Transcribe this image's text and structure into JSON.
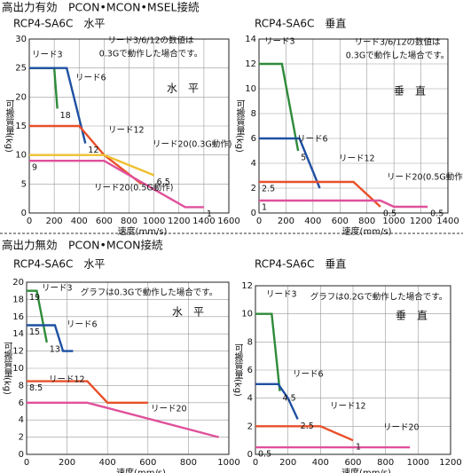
{
  "headers": [
    "高出力有効　PCON•MCON•MSEL接続",
    "高出力無効　PCON•MCON接続"
  ],
  "chart_data": [
    {
      "type": "line",
      "title": "RCP4-SA6C　水平",
      "x_label": "速度(mm/s)",
      "y_label": "可搬質量(kg)",
      "notes": [
        "リード3/6/12の数値は",
        "0.3Gで動作した場合です。"
      ],
      "direction": "水　平",
      "xlim": [
        0,
        1600
      ],
      "xticks": [
        0,
        200,
        400,
        600,
        800,
        1000,
        1200,
        1400,
        1600
      ],
      "ylim": [
        0,
        30
      ],
      "yticks": [
        0,
        5,
        10,
        15,
        20,
        25,
        30
      ],
      "grid": true,
      "series": [
        {
          "name": "リード3",
          "color": "#2e8b3a",
          "x": [
            0,
            200,
            225
          ],
          "values": [
            25,
            25,
            18
          ]
        },
        {
          "name": "リード6",
          "color": "#1e50a2",
          "x": [
            0,
            300,
            450
          ],
          "values": [
            25,
            25,
            12
          ]
        },
        {
          "name": "リード12",
          "color": "#e8502a",
          "x": [
            0,
            400,
            600,
            900
          ],
          "values": [
            15,
            15,
            10,
            5
          ]
        },
        {
          "name": "リード20(0.3G動作)",
          "color": "#f0c030",
          "x": [
            0,
            600,
            1000
          ],
          "values": [
            10,
            10,
            6.5
          ]
        },
        {
          "name": "リード20(0.5G動作)",
          "color": "#e0509a",
          "x": [
            0,
            600,
            1250,
            1400
          ],
          "values": [
            9,
            9,
            1,
            1
          ]
        }
      ],
      "point_labels": [
        {
          "value": 18,
          "x": 225
        },
        {
          "value": 12,
          "x": 450
        },
        {
          "value": 6.5,
          "x": 1000
        },
        {
          "value": 9,
          "x": 0
        },
        {
          "value": 1,
          "x": 1400
        }
      ]
    },
    {
      "type": "line",
      "title": "RCP4-SA6C　垂直",
      "x_label": "速度(mm/s)",
      "y_label": "可搬質量(kg)",
      "notes": [
        "リード3/6/12の数値は",
        "0.3Gで動作した場合です。"
      ],
      "direction": "垂　直",
      "xlim": [
        0,
        1400
      ],
      "xticks": [
        0,
        200,
        400,
        600,
        800,
        1000,
        1200,
        1400
      ],
      "ylim": [
        0,
        14
      ],
      "yticks": [
        0,
        2,
        4,
        6,
        8,
        10,
        12,
        14
      ],
      "grid": true,
      "series": [
        {
          "name": "リード3",
          "color": "#2e8b3a",
          "x": [
            0,
            170,
            290
          ],
          "values": [
            12,
            12,
            5
          ]
        },
        {
          "name": "リード6",
          "color": "#1e50a2",
          "x": [
            0,
            300,
            450
          ],
          "values": [
            6,
            6,
            2
          ]
        },
        {
          "name": "リード12",
          "color": "#e8502a",
          "x": [
            0,
            700,
            900
          ],
          "values": [
            2.5,
            2.5,
            0.5
          ]
        },
        {
          "name": "リード20(0.5G動作)",
          "color": "#e0509a",
          "x": [
            0,
            900,
            1000,
            1250
          ],
          "values": [
            1,
            1,
            0.5,
            0.5
          ]
        }
      ],
      "point_labels": [
        {
          "value": 5,
          "x": 290
        },
        {
          "value": 2.5,
          "x": 0
        },
        {
          "value": 1,
          "x": 0
        },
        {
          "value": 0.5,
          "x": 900
        },
        {
          "value": 0.5,
          "x": 1250
        }
      ]
    },
    {
      "type": "line",
      "title": "RCP4-SA6C　水平",
      "x_label": "速度(mm/s)",
      "y_label": "可搬質量(kg)",
      "notes": [
        "グラフは0.3Gで動作した場合です。"
      ],
      "direction": "水　平",
      "xlim": [
        0,
        1000
      ],
      "xticks": [
        0,
        200,
        400,
        600,
        800,
        1000
      ],
      "ylim": [
        0,
        20
      ],
      "yticks": [
        0,
        2,
        4,
        6,
        8,
        10,
        12,
        14,
        16,
        18,
        20
      ],
      "grid": true,
      "series": [
        {
          "name": "リード3",
          "color": "#2e8b3a",
          "x": [
            0,
            50,
            100
          ],
          "values": [
            19,
            19,
            13
          ]
        },
        {
          "name": "リード6",
          "color": "#1e50a2",
          "x": [
            0,
            140,
            180,
            230
          ],
          "values": [
            15,
            15,
            12,
            12
          ]
        },
        {
          "name": "リード12",
          "color": "#e8502a",
          "x": [
            0,
            300,
            400,
            600
          ],
          "values": [
            8.5,
            8.5,
            6,
            6
          ]
        },
        {
          "name": "リード20",
          "color": "#e0509a",
          "x": [
            0,
            300,
            950
          ],
          "values": [
            6,
            6,
            2
          ]
        }
      ],
      "point_labels": [
        {
          "value": 19,
          "x": 0
        },
        {
          "value": 15,
          "x": 0
        },
        {
          "value": 13,
          "x": 100
        },
        {
          "value": 8.5,
          "x": 0
        }
      ]
    },
    {
      "type": "line",
      "title": "RCP4-SA6C　垂直",
      "x_label": "速度(mm/s)",
      "y_label": "可搬質量(kg)",
      "notes": [
        "グラフは0.2Gで動作した場合です。"
      ],
      "direction": "垂　直",
      "xlim": [
        0,
        1200
      ],
      "xticks": [
        0,
        200,
        400,
        600,
        800,
        1000,
        1200
      ],
      "ylim": [
        0,
        12
      ],
      "yticks": [
        0,
        2,
        4,
        6,
        8,
        10,
        12
      ],
      "grid": true,
      "series": [
        {
          "name": "リード3",
          "color": "#2e8b3a",
          "x": [
            0,
            100,
            150
          ],
          "values": [
            10,
            10,
            4.5
          ]
        },
        {
          "name": "リード6",
          "color": "#1e50a2",
          "x": [
            0,
            140,
            200,
            260
          ],
          "values": [
            5,
            5,
            4,
            2.5
          ]
        },
        {
          "name": "リード12",
          "color": "#e8502a",
          "x": [
            0,
            400,
            600
          ],
          "values": [
            2,
            2,
            1
          ]
        },
        {
          "name": "リード20",
          "color": "#e0509a",
          "x": [
            0,
            950
          ],
          "values": [
            0.5,
            0.5
          ]
        }
      ],
      "point_labels": [
        {
          "value": 4.5,
          "x": 150
        },
        {
          "value": 2.5,
          "x": 260
        },
        {
          "value": 1,
          "x": 600
        },
        {
          "value": 0.5,
          "x": 0
        }
      ]
    }
  ]
}
